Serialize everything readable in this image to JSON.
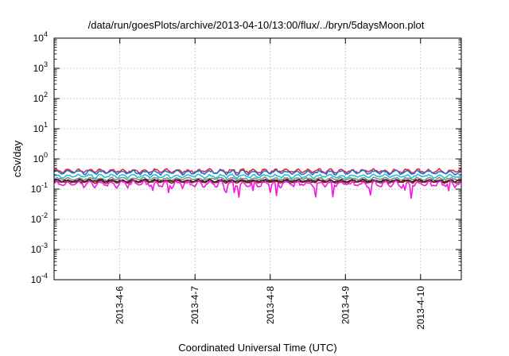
{
  "chart_data": {
    "type": "line",
    "title": "/data/run/goesPlots/archive/2013-04-10/13:00/flux/../bryn/5daysMoon.plot",
    "xlabel": "Coordinated Universal Time (UTC)",
    "ylabel": "cSv/day",
    "y_scale": "log",
    "ylim": [
      0.0001,
      10000
    ],
    "y_ticks": [
      {
        "base": "10",
        "exp": "-4",
        "value": 0.0001
      },
      {
        "base": "10",
        "exp": "-3",
        "value": 0.001
      },
      {
        "base": "10",
        "exp": "-2",
        "value": 0.01
      },
      {
        "base": "10",
        "exp": "-1",
        "value": 0.1
      },
      {
        "base": "10",
        "exp": "0",
        "value": 1
      },
      {
        "base": "10",
        "exp": "1",
        "value": 10
      },
      {
        "base": "10",
        "exp": "2",
        "value": 100
      },
      {
        "base": "10",
        "exp": "3",
        "value": 1000
      },
      {
        "base": "10",
        "exp": "4",
        "value": 10000
      }
    ],
    "x_range": [
      "2013-04-05 03:00",
      "2013-04-10 13:00"
    ],
    "x_ticks": [
      "2013-4-6",
      "2013-4-7",
      "2013-4-8",
      "2013-4-9",
      "2013-4-10"
    ],
    "x_tick_values": [
      "2013-04-06",
      "2013-04-07",
      "2013-04-08",
      "2013-04-09",
      "2013-04-10"
    ],
    "grid": true,
    "legend": "none",
    "series": [
      {
        "color": "#e8262b",
        "level": 0.4,
        "variation": 0.12
      },
      {
        "color": "#1f6fe0",
        "level": 0.36,
        "variation": 0.12
      },
      {
        "color": "#27c2c6",
        "level": 0.27,
        "variation": 0.1
      },
      {
        "color": "#8a8a8a",
        "level": 0.22,
        "variation": 0.08
      },
      {
        "color": "#1a1a1a",
        "level": 0.19,
        "variation": 0.07
      },
      {
        "color": "#8b1e1e",
        "level": 0.175,
        "variation": 0.07
      },
      {
        "color": "#f218e0",
        "level": 0.15,
        "variation": 0.18
      }
    ]
  }
}
